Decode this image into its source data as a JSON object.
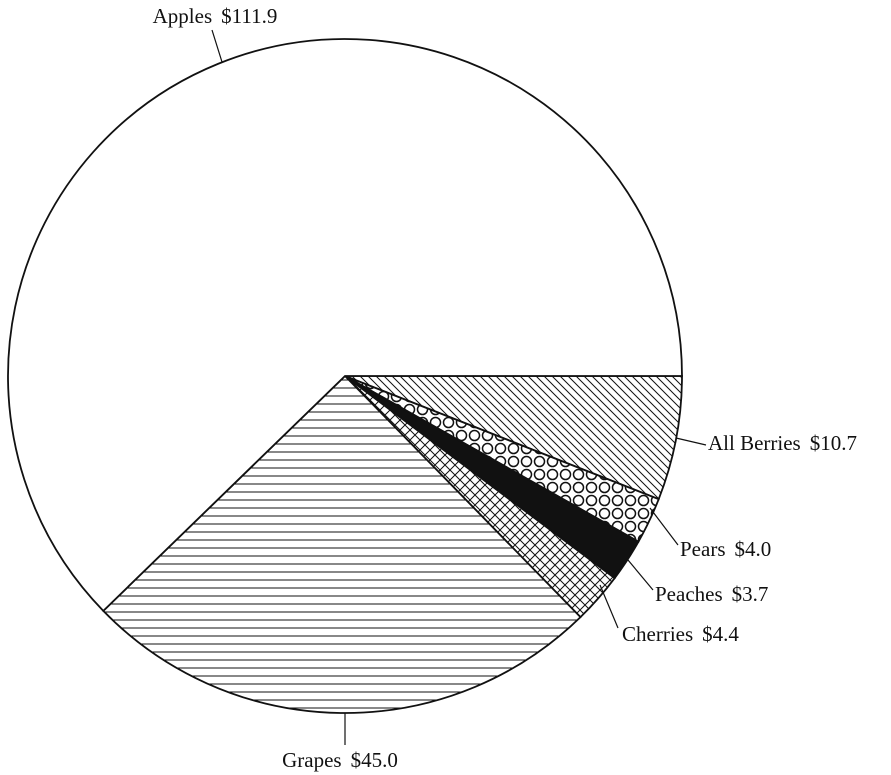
{
  "chart_data": {
    "type": "pie",
    "categories": [
      "All Berries",
      "Pears",
      "Peaches",
      "Cherries",
      "Grapes",
      "Apples"
    ],
    "values": [
      10.7,
      4.0,
      3.7,
      4.4,
      45.0,
      111.9
    ],
    "value_labels": [
      "$10.7",
      "$4.0",
      "$3.7",
      "$4.4",
      "$45.0",
      "$111.9"
    ],
    "fills": [
      "diagonal",
      "circles",
      "solid",
      "crosshatch",
      "horizontal",
      "none"
    ],
    "color": "#111111"
  }
}
